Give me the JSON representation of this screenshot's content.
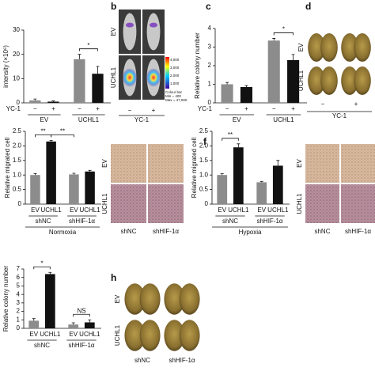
{
  "chart_data": [
    {
      "type": "bar",
      "ylabel": "intensity (×10⁶)",
      "ylim": [
        0,
        30
      ],
      "yticks": [
        0,
        10,
        20,
        30
      ],
      "row_label": "YC-1",
      "categories": [
        "−",
        "+",
        "−",
        "+"
      ],
      "groups": [
        "EV",
        "UCHL1"
      ],
      "values": [
        1,
        0.5,
        18,
        12
      ],
      "errors": [
        0.6,
        0.3,
        2,
        3
      ],
      "colors": [
        "#8c8c8c",
        "#111111",
        "#8c8c8c",
        "#111111"
      ],
      "annotations": [
        "*"
      ]
    },
    {
      "type": "bar",
      "letter": "c",
      "ylabel": "Relative colony number",
      "ylim": [
        0,
        4
      ],
      "yticks": [
        0,
        1,
        2,
        3,
        4
      ],
      "row_label": "YC-1",
      "categories": [
        "−",
        "+",
        "−",
        "+"
      ],
      "groups": [
        "EV",
        "UCHL1"
      ],
      "values": [
        1.0,
        0.85,
        3.35,
        2.3
      ],
      "errors": [
        0.1,
        0.08,
        0.12,
        0.3
      ],
      "colors": [
        "#8c8c8c",
        "#111111",
        "#8c8c8c",
        "#111111"
      ],
      "annotations": [
        "*"
      ]
    },
    {
      "type": "bar",
      "ylabel": "Relative migrated cell",
      "ylim": [
        0,
        2.5
      ],
      "yticks": [
        0,
        0.5,
        {
          "value": 1,
          "label": "1.0"
        },
        1.5,
        {
          "value": 2,
          "label": "2.0"
        },
        2.5
      ],
      "categories": [
        "EV",
        "UCHL1",
        "EV",
        "UCHL1"
      ],
      "groups": [
        "shNC",
        "shHIF-1α"
      ],
      "condition": "Normoxia",
      "values": [
        1.0,
        2.15,
        1.02,
        1.12
      ],
      "errors": [
        0.05,
        0.04,
        0.04,
        0.04
      ],
      "colors": [
        "#8c8c8c",
        "#111111",
        "#8c8c8c",
        "#111111"
      ],
      "annotations": [
        "**",
        "**"
      ]
    },
    {
      "type": "bar",
      "letter": "f",
      "ylabel": "Relative migrated cell",
      "ylim": [
        0,
        2.5
      ],
      "yticks": [
        0,
        0.5,
        {
          "value": 1,
          "label": "1.0"
        },
        1.5,
        {
          "value": 2,
          "label": "2.0"
        },
        2.5
      ],
      "categories": [
        "EV",
        "UCHL1",
        "EV",
        "UCHL1"
      ],
      "groups": [
        "shNC",
        "shHIF-1α"
      ],
      "condition": "Hypoxia",
      "values": [
        1.0,
        1.95,
        0.75,
        1.32
      ],
      "errors": [
        0.05,
        0.12,
        0.03,
        0.18
      ],
      "colors": [
        "#8c8c8c",
        "#111111",
        "#8c8c8c",
        "#111111"
      ],
      "annotations": [
        "**"
      ]
    },
    {
      "type": "bar",
      "ylabel": "Relative colony number",
      "ylim": [
        0,
        7
      ],
      "yticks": [
        0,
        1,
        2,
        3,
        4,
        5,
        6,
        7
      ],
      "categories": [
        "EV",
        "UCHL1",
        "EV",
        "UCHL1"
      ],
      "groups": [
        "shNC",
        "shHIF-1α"
      ],
      "values": [
        0.9,
        6.4,
        0.45,
        0.7
      ],
      "errors": [
        0.25,
        0.2,
        0.2,
        0.3
      ],
      "colors": [
        "#8c8c8c",
        "#111111",
        "#8c8c8c",
        "#111111"
      ],
      "annotations": [
        "*",
        "NS"
      ]
    }
  ],
  "image_panels": [
    {
      "letter": "b",
      "rows": [
        "EV",
        "UCHL1"
      ],
      "cols": [
        "−",
        "+"
      ],
      "xlabel": "YC-1",
      "colour_scale": [
        "4,000",
        "3,000",
        "2,000",
        "1,000"
      ],
      "colour_note": [
        "Colour bar",
        "Min = 400",
        "Max = 47,000"
      ]
    },
    {
      "letter": "d",
      "rows": [
        "EV",
        "UCHL1"
      ],
      "cols": [
        "−",
        "+"
      ],
      "xlabel": "YC-1"
    },
    {
      "rows": [
        "EV",
        "UCHL1"
      ],
      "cols": [
        "shNC",
        "shHIF-1α"
      ]
    },
    {
      "rows": [
        "EV",
        "UCHL1"
      ],
      "cols": [
        "shNC",
        "shHIF-1α"
      ]
    },
    {
      "letter": "h",
      "rows": [
        "EV",
        "UCHL1"
      ],
      "cols": [
        "shNC",
        "shHIF-1α"
      ]
    }
  ]
}
